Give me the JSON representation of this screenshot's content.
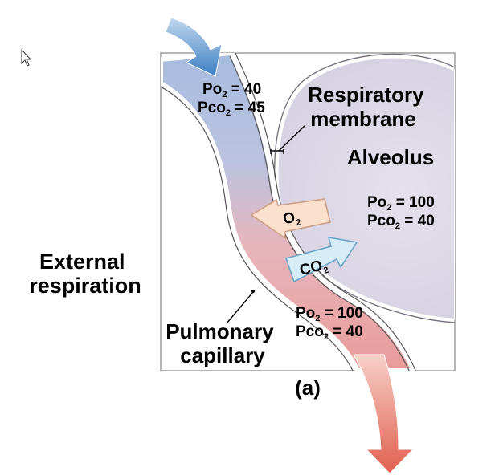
{
  "figure": {
    "panel_label": "(a)",
    "section_label_lines": [
      "External",
      "respiration"
    ],
    "labels": {
      "respiratory_membrane": [
        "Respiratory",
        "membrane"
      ],
      "alveolus": "Alveolus",
      "pulmonary_capillary": [
        "Pulmonary",
        "capillary"
      ]
    },
    "gases": {
      "o2": {
        "base": "O",
        "sub": "2"
      },
      "co2": {
        "base": "CO",
        "sub": "2"
      }
    },
    "pressures": {
      "capillary_in": {
        "po2": "= 40",
        "pco2": "= 45"
      },
      "alveolus": {
        "po2": "= 100",
        "pco2": "= 40"
      },
      "capillary_out": {
        "po2": "= 100",
        "pco2": "= 40"
      }
    },
    "pressure_symbols": {
      "po": "Po",
      "pco": "Pco",
      "sub": "2"
    }
  },
  "colors": {
    "deoxygenated": "#5b8fc7",
    "oxygenated": "#e0655a",
    "alveolus_fill": "#ddd8e6",
    "frame": "#b5b5b5"
  }
}
